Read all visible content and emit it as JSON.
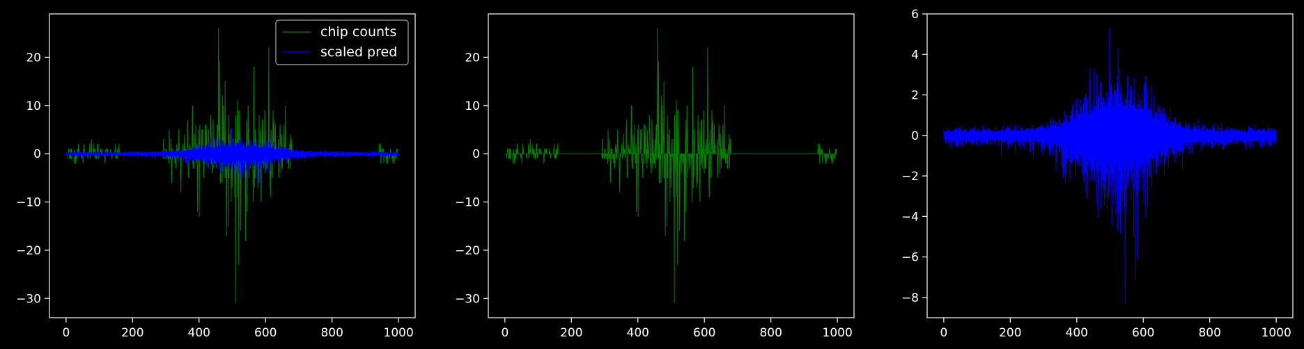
{
  "chart_data": [
    {
      "type": "line",
      "xlim": [
        -50,
        1050
      ],
      "ylim": [
        -34,
        29
      ],
      "xticks": [
        0,
        200,
        400,
        600,
        800,
        1000
      ],
      "yticks": [
        -30,
        -20,
        -10,
        0,
        10,
        20
      ],
      "xtick_labels": [
        "0",
        "200",
        "400",
        "600",
        "800",
        "1000"
      ],
      "ytick_labels": [
        "−30",
        "−20",
        "−10",
        "0",
        "10",
        "20"
      ],
      "legend": {
        "position": "top-right"
      },
      "series": [
        {
          "name": "chip counts",
          "color": "#008000",
          "kind": "counts"
        },
        {
          "name": "scaled pred",
          "color": "#0000ff",
          "kind": "pred"
        }
      ]
    },
    {
      "type": "line",
      "xlim": [
        -50,
        1050
      ],
      "ylim": [
        -34,
        29
      ],
      "xticks": [
        0,
        200,
        400,
        600,
        800,
        1000
      ],
      "yticks": [
        -30,
        -20,
        -10,
        0,
        10,
        20
      ],
      "xtick_labels": [
        "0",
        "200",
        "400",
        "600",
        "800",
        "1000"
      ],
      "ytick_labels": [
        "−30",
        "−20",
        "−10",
        "0",
        "10",
        "20"
      ],
      "series": [
        {
          "color": "#008000",
          "kind": "counts"
        }
      ]
    },
    {
      "type": "line",
      "xlim": [
        -50,
        1050
      ],
      "ylim": [
        -9,
        6
      ],
      "xticks": [
        0,
        200,
        400,
        600,
        800,
        1000
      ],
      "yticks": [
        -8,
        -6,
        -4,
        -2,
        0,
        2,
        4,
        6
      ],
      "xtick_labels": [
        "0",
        "200",
        "400",
        "600",
        "800",
        "1000"
      ],
      "ytick_labels": [
        "−8",
        "−6",
        "−4",
        "−2",
        "0",
        "2",
        "4",
        "6"
      ],
      "series": [
        {
          "color": "#0000ff",
          "kind": "pred"
        }
      ]
    }
  ],
  "signal": {
    "x_range": [
      0,
      1000
    ],
    "n_points": 1000,
    "counts_spikes": [
      [
        458,
        26
      ],
      [
        610,
        22
      ],
      [
        510,
        -31
      ],
      [
        520,
        -23
      ],
      [
        540,
        -18
      ],
      [
        660,
        -11
      ],
      [
        400,
        -13
      ],
      [
        395,
        -12
      ],
      [
        380,
        10
      ],
      [
        470,
        12
      ],
      [
        660,
        10
      ],
      [
        345,
        -8
      ]
    ],
    "pred_extremes": [
      [
        497,
        5.3
      ],
      [
        545,
        -8.3
      ],
      [
        575,
        -7.2
      ],
      [
        525,
        4.3
      ]
    ]
  }
}
